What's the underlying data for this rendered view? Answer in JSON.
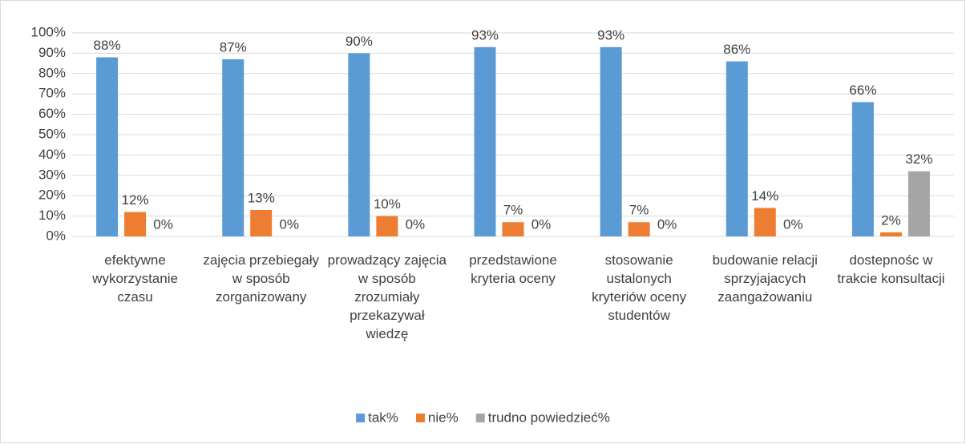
{
  "chart_data": {
    "type": "bar",
    "categories": [
      "efektywne wykorzystanie czasu",
      "zajęcia przebiegały w sposób zorganizowany",
      "prowadzący zajęcia w sposób zrozumiały przekazywał wiedzę",
      "przedstawione kryteria oceny",
      "stosowanie ustalonych kryteriów oceny studentów",
      "budowanie relacji sprzyjajacych zaangażowaniu",
      "dostepnośc w trakcie konsultacji"
    ],
    "series": [
      {
        "name": "tak%",
        "color": "#5b9bd5",
        "values": [
          88,
          87,
          90,
          93,
          93,
          86,
          66
        ],
        "value_labels": [
          "88%",
          "87%",
          "90%",
          "93%",
          "93%",
          "86%",
          "66%"
        ]
      },
      {
        "name": "nie%",
        "color": "#ed7d31",
        "values": [
          12,
          13,
          10,
          7,
          7,
          14,
          2
        ],
        "value_labels": [
          "12%",
          "13%",
          "10%",
          "7%",
          "7%",
          "14%",
          "2%"
        ]
      },
      {
        "name": "trudno powiedzieć%",
        "color": "#a5a5a5",
        "values": [
          0,
          0,
          0,
          0,
          0,
          0,
          32
        ],
        "value_labels": [
          "0%",
          "0%",
          "0%",
          "0%",
          "0%",
          "0%",
          "32%"
        ]
      }
    ],
    "ylim": [
      0,
      100
    ],
    "yticks": [
      {
        "value": 0,
        "label": "0%"
      },
      {
        "value": 10,
        "label": "10%"
      },
      {
        "value": 20,
        "label": "20%"
      },
      {
        "value": 30,
        "label": "30%"
      },
      {
        "value": 40,
        "label": "40%"
      },
      {
        "value": 50,
        "label": "50%"
      },
      {
        "value": 60,
        "label": "60%"
      },
      {
        "value": 70,
        "label": "70%"
      },
      {
        "value": 80,
        "label": "80%"
      },
      {
        "value": 90,
        "label": "90%"
      },
      {
        "value": 100,
        "label": "100%"
      }
    ],
    "grid": true,
    "legend": "bottom"
  }
}
